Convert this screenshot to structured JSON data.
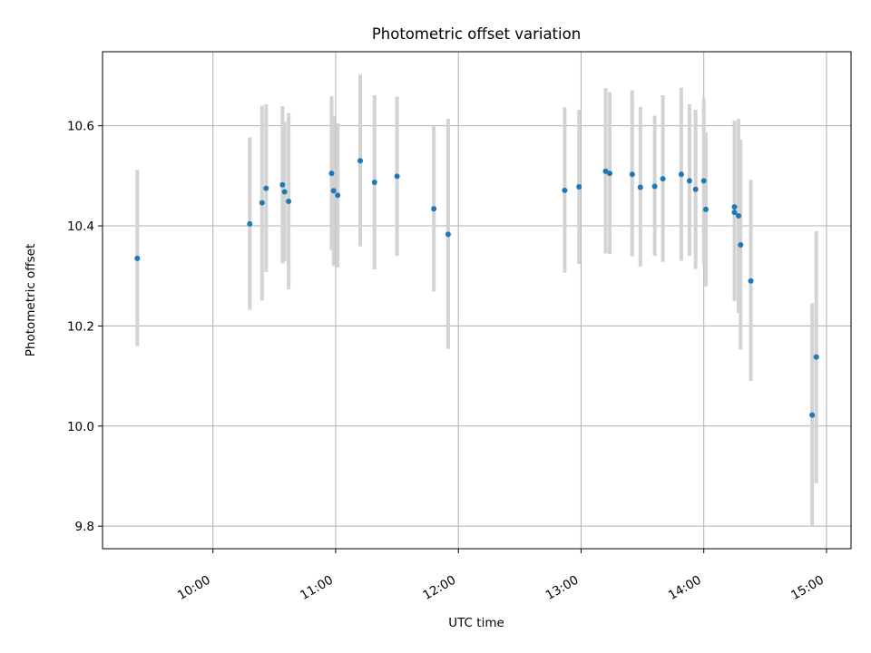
{
  "chart_data": {
    "type": "scatter",
    "title": "Photometric offset variation",
    "xlabel": "UTC time",
    "ylabel": "Photometric offset",
    "x_axis": "time",
    "xlim": [
      "09:06",
      "15:12"
    ],
    "ylim": [
      9.755,
      10.748
    ],
    "xticks": [
      {
        "value": "10:00",
        "label": "10:00"
      },
      {
        "value": "11:00",
        "label": "11:00"
      },
      {
        "value": "12:00",
        "label": "12:00"
      },
      {
        "value": "13:00",
        "label": "13:00"
      },
      {
        "value": "14:00",
        "label": "14:00"
      },
      {
        "value": "15:00",
        "label": "15:00"
      }
    ],
    "yticks": [
      {
        "value": 9.8,
        "label": "9.8"
      },
      {
        "value": 10.0,
        "label": "10.0"
      },
      {
        "value": 10.2,
        "label": "10.2"
      },
      {
        "value": 10.4,
        "label": "10.4"
      },
      {
        "value": 10.6,
        "label": "10.6"
      }
    ],
    "grid": true,
    "marker_color": "#1f77b4",
    "errorbar_color": "#d3d3d3",
    "points": [
      {
        "x": "09:23",
        "y": 10.335,
        "lo": 10.16,
        "hi": 10.512
      },
      {
        "x": "10:18",
        "y": 10.404,
        "lo": 10.232,
        "hi": 10.577
      },
      {
        "x": "10:24",
        "y": 10.446,
        "lo": 10.251,
        "hi": 10.64
      },
      {
        "x": "10:26",
        "y": 10.475,
        "lo": 10.308,
        "hi": 10.643
      },
      {
        "x": "10:34",
        "y": 10.482,
        "lo": 10.325,
        "hi": 10.639
      },
      {
        "x": "10:35",
        "y": 10.468,
        "lo": 10.329,
        "hi": 10.608
      },
      {
        "x": "10:37",
        "y": 10.449,
        "lo": 10.273,
        "hi": 10.625
      },
      {
        "x": "10:58",
        "y": 10.505,
        "lo": 10.352,
        "hi": 10.659
      },
      {
        "x": "10:59",
        "y": 10.47,
        "lo": 10.32,
        "hi": 10.62
      },
      {
        "x": "11:01",
        "y": 10.461,
        "lo": 10.317,
        "hi": 10.605
      },
      {
        "x": "11:12",
        "y": 10.53,
        "lo": 10.359,
        "hi": 10.702
      },
      {
        "x": "11:19",
        "y": 10.487,
        "lo": 10.313,
        "hi": 10.661
      },
      {
        "x": "11:30",
        "y": 10.499,
        "lo": 10.34,
        "hi": 10.658
      },
      {
        "x": "11:48",
        "y": 10.434,
        "lo": 10.269,
        "hi": 10.599
      },
      {
        "x": "11:55",
        "y": 10.383,
        "lo": 10.154,
        "hi": 10.614
      },
      {
        "x": "12:52",
        "y": 10.471,
        "lo": 10.306,
        "hi": 10.637
      },
      {
        "x": "12:59",
        "y": 10.478,
        "lo": 10.324,
        "hi": 10.632
      },
      {
        "x": "13:12",
        "y": 10.509,
        "lo": 10.345,
        "hi": 10.675
      },
      {
        "x": "13:14",
        "y": 10.505,
        "lo": 10.344,
        "hi": 10.667
      },
      {
        "x": "13:25",
        "y": 10.503,
        "lo": 10.339,
        "hi": 10.671
      },
      {
        "x": "13:29",
        "y": 10.477,
        "lo": 10.319,
        "hi": 10.638
      },
      {
        "x": "13:36",
        "y": 10.479,
        "lo": 10.34,
        "hi": 10.62
      },
      {
        "x": "13:40",
        "y": 10.494,
        "lo": 10.328,
        "hi": 10.661
      },
      {
        "x": "13:49",
        "y": 10.503,
        "lo": 10.33,
        "hi": 10.676
      },
      {
        "x": "13:53",
        "y": 10.49,
        "lo": 10.34,
        "hi": 10.643
      },
      {
        "x": "13:56",
        "y": 10.473,
        "lo": 10.314,
        "hi": 10.632
      },
      {
        "x": "14:00",
        "y": 10.49,
        "lo": 10.323,
        "hi": 10.655
      },
      {
        "x": "14:01",
        "y": 10.433,
        "lo": 10.279,
        "hi": 10.587
      },
      {
        "x": "14:15",
        "y": 10.438,
        "lo": 10.255,
        "hi": 10.607
      },
      {
        "x": "14:15",
        "y": 10.427,
        "lo": 10.25,
        "hi": 10.61
      },
      {
        "x": "14:17",
        "y": 10.42,
        "lo": 10.226,
        "hi": 10.614
      },
      {
        "x": "14:18",
        "y": 10.362,
        "lo": 10.153,
        "hi": 10.572
      },
      {
        "x": "14:23",
        "y": 10.29,
        "lo": 10.09,
        "hi": 10.492
      },
      {
        "x": "14:53",
        "y": 10.022,
        "lo": 9.8,
        "hi": 10.245
      },
      {
        "x": "14:55",
        "y": 10.138,
        "lo": 9.886,
        "hi": 10.39
      }
    ]
  }
}
